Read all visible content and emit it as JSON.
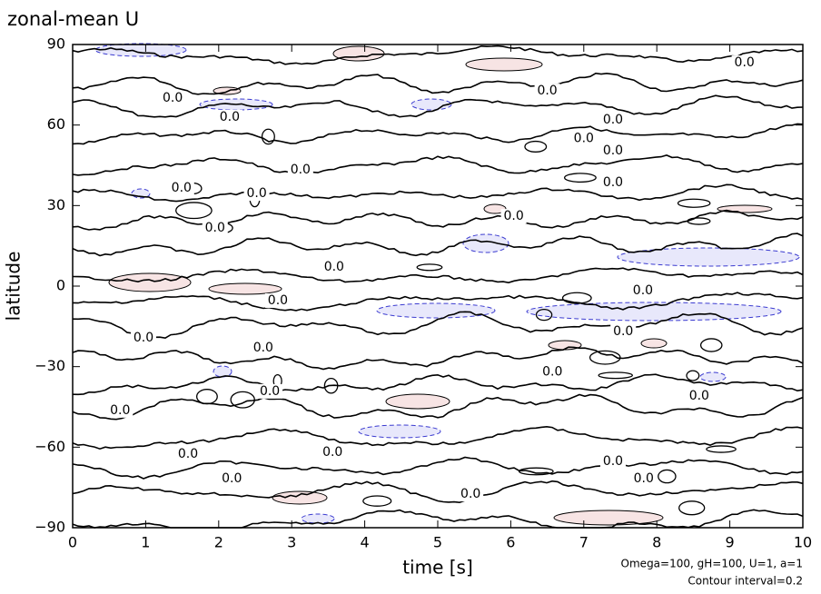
{
  "chart_data": {
    "type": "contour",
    "title": "zonal-mean U",
    "xlabel": "time [s]",
    "ylabel": "latitude",
    "notes": [
      "Omega=100, gH=100, U=1, a=1",
      "Contour interval=0.2"
    ],
    "xlim": [
      0,
      10
    ],
    "ylim": [
      -90,
      90
    ],
    "xticks": [
      0,
      1,
      2,
      3,
      4,
      5,
      6,
      7,
      8,
      9,
      10
    ],
    "yticks": [
      {
        "value": -90,
        "label": "−90"
      },
      {
        "value": -60,
        "label": "−60"
      },
      {
        "value": -30,
        "label": "−30"
      },
      0,
      30,
      60,
      90
    ],
    "line_color": "#000000",
    "positive_color": "#f7e4e4",
    "negative_color": "#e8e8fb",
    "contour_labels": [
      {
        "x": 9.2,
        "y": 83.2,
        "label": "0.0"
      },
      {
        "x": 6.5,
        "y": 72.7,
        "label": "0.0"
      },
      {
        "x": 1.37,
        "y": 70,
        "label": "0.0"
      },
      {
        "x": 2.15,
        "y": 63,
        "label": "0.0"
      },
      {
        "x": 7.4,
        "y": 62,
        "label": "0.0"
      },
      {
        "x": 7.0,
        "y": 55,
        "label": "0.0"
      },
      {
        "x": 7.4,
        "y": 50.4,
        "label": "0.0"
      },
      {
        "x": 3.12,
        "y": 43.3,
        "label": "0.0"
      },
      {
        "x": 7.4,
        "y": 38.6,
        "label": "0.0"
      },
      {
        "x": 1.49,
        "y": 36.5,
        "label": "0.0"
      },
      {
        "x": 2.52,
        "y": 34.5,
        "label": "0.0"
      },
      {
        "x": 6.04,
        "y": 26,
        "label": "0.0"
      },
      {
        "x": 1.95,
        "y": 21.7,
        "label": "0.0"
      },
      {
        "x": 3.58,
        "y": 7.1,
        "label": "0.0"
      },
      {
        "x": 7.81,
        "y": -1.7,
        "label": "0.0"
      },
      {
        "x": 2.81,
        "y": -5.4,
        "label": "0.0"
      },
      {
        "x": 7.54,
        "y": -16.9,
        "label": "0.0"
      },
      {
        "x": 0.97,
        "y": -19.3,
        "label": "0.0"
      },
      {
        "x": 2.61,
        "y": -23,
        "label": "0.0"
      },
      {
        "x": 6.57,
        "y": -32,
        "label": "0.0"
      },
      {
        "x": 2.7,
        "y": -39.2,
        "label": "0.0"
      },
      {
        "x": 8.58,
        "y": -40.9,
        "label": "0.0"
      },
      {
        "x": 0.65,
        "y": -46.3,
        "label": "0.0"
      },
      {
        "x": 3.56,
        "y": -61.9,
        "label": "0.0"
      },
      {
        "x": 1.58,
        "y": -62.6,
        "label": "0.0"
      },
      {
        "x": 7.4,
        "y": -65.3,
        "label": "0.0"
      },
      {
        "x": 2.18,
        "y": -71.7,
        "label": "0.0"
      },
      {
        "x": 7.82,
        "y": -71.7,
        "label": "0.0"
      },
      {
        "x": 5.45,
        "y": -77.5,
        "label": "0.0"
      }
    ]
  }
}
